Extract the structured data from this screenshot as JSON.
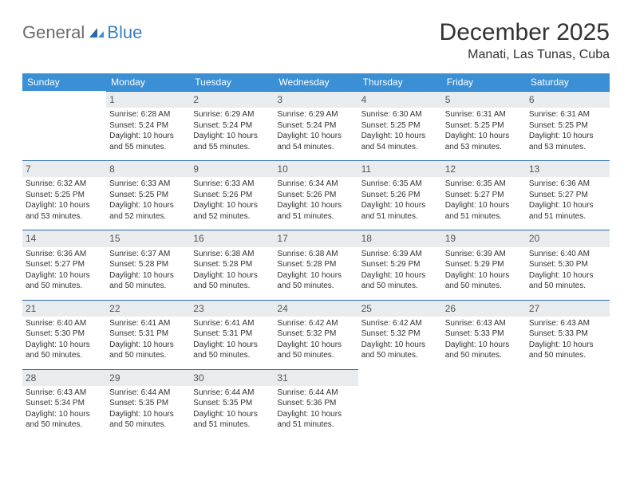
{
  "logo": {
    "general": "General",
    "blue": "Blue"
  },
  "title": "December 2025",
  "location": "Manati, Las Tunas, Cuba",
  "colors": {
    "header_bg": "#3b8fd4",
    "header_text": "#ffffff",
    "daynum_bg": "#e8ecef",
    "daynum_border": "#2a6aa8",
    "text": "#333333",
    "logo_gray": "#6b6b6b",
    "logo_blue": "#3b7fbf"
  },
  "typography": {
    "title_fontsize": 30,
    "location_fontsize": 16,
    "header_fontsize": 12,
    "cell_fontsize": 10
  },
  "weekdays": [
    "Sunday",
    "Monday",
    "Tuesday",
    "Wednesday",
    "Thursday",
    "Friday",
    "Saturday"
  ],
  "first_weekday_index": 1,
  "days": [
    {
      "n": 1,
      "sunrise": "6:28 AM",
      "sunset": "5:24 PM",
      "daylight": "10 hours and 55 minutes."
    },
    {
      "n": 2,
      "sunrise": "6:29 AM",
      "sunset": "5:24 PM",
      "daylight": "10 hours and 55 minutes."
    },
    {
      "n": 3,
      "sunrise": "6:29 AM",
      "sunset": "5:24 PM",
      "daylight": "10 hours and 54 minutes."
    },
    {
      "n": 4,
      "sunrise": "6:30 AM",
      "sunset": "5:25 PM",
      "daylight": "10 hours and 54 minutes."
    },
    {
      "n": 5,
      "sunrise": "6:31 AM",
      "sunset": "5:25 PM",
      "daylight": "10 hours and 53 minutes."
    },
    {
      "n": 6,
      "sunrise": "6:31 AM",
      "sunset": "5:25 PM",
      "daylight": "10 hours and 53 minutes."
    },
    {
      "n": 7,
      "sunrise": "6:32 AM",
      "sunset": "5:25 PM",
      "daylight": "10 hours and 53 minutes."
    },
    {
      "n": 8,
      "sunrise": "6:33 AM",
      "sunset": "5:25 PM",
      "daylight": "10 hours and 52 minutes."
    },
    {
      "n": 9,
      "sunrise": "6:33 AM",
      "sunset": "5:26 PM",
      "daylight": "10 hours and 52 minutes."
    },
    {
      "n": 10,
      "sunrise": "6:34 AM",
      "sunset": "5:26 PM",
      "daylight": "10 hours and 51 minutes."
    },
    {
      "n": 11,
      "sunrise": "6:35 AM",
      "sunset": "5:26 PM",
      "daylight": "10 hours and 51 minutes."
    },
    {
      "n": 12,
      "sunrise": "6:35 AM",
      "sunset": "5:27 PM",
      "daylight": "10 hours and 51 minutes."
    },
    {
      "n": 13,
      "sunrise": "6:36 AM",
      "sunset": "5:27 PM",
      "daylight": "10 hours and 51 minutes."
    },
    {
      "n": 14,
      "sunrise": "6:36 AM",
      "sunset": "5:27 PM",
      "daylight": "10 hours and 50 minutes."
    },
    {
      "n": 15,
      "sunrise": "6:37 AM",
      "sunset": "5:28 PM",
      "daylight": "10 hours and 50 minutes."
    },
    {
      "n": 16,
      "sunrise": "6:38 AM",
      "sunset": "5:28 PM",
      "daylight": "10 hours and 50 minutes."
    },
    {
      "n": 17,
      "sunrise": "6:38 AM",
      "sunset": "5:28 PM",
      "daylight": "10 hours and 50 minutes."
    },
    {
      "n": 18,
      "sunrise": "6:39 AM",
      "sunset": "5:29 PM",
      "daylight": "10 hours and 50 minutes."
    },
    {
      "n": 19,
      "sunrise": "6:39 AM",
      "sunset": "5:29 PM",
      "daylight": "10 hours and 50 minutes."
    },
    {
      "n": 20,
      "sunrise": "6:40 AM",
      "sunset": "5:30 PM",
      "daylight": "10 hours and 50 minutes."
    },
    {
      "n": 21,
      "sunrise": "6:40 AM",
      "sunset": "5:30 PM",
      "daylight": "10 hours and 50 minutes."
    },
    {
      "n": 22,
      "sunrise": "6:41 AM",
      "sunset": "5:31 PM",
      "daylight": "10 hours and 50 minutes."
    },
    {
      "n": 23,
      "sunrise": "6:41 AM",
      "sunset": "5:31 PM",
      "daylight": "10 hours and 50 minutes."
    },
    {
      "n": 24,
      "sunrise": "6:42 AM",
      "sunset": "5:32 PM",
      "daylight": "10 hours and 50 minutes."
    },
    {
      "n": 25,
      "sunrise": "6:42 AM",
      "sunset": "5:32 PM",
      "daylight": "10 hours and 50 minutes."
    },
    {
      "n": 26,
      "sunrise": "6:43 AM",
      "sunset": "5:33 PM",
      "daylight": "10 hours and 50 minutes."
    },
    {
      "n": 27,
      "sunrise": "6:43 AM",
      "sunset": "5:33 PM",
      "daylight": "10 hours and 50 minutes."
    },
    {
      "n": 28,
      "sunrise": "6:43 AM",
      "sunset": "5:34 PM",
      "daylight": "10 hours and 50 minutes."
    },
    {
      "n": 29,
      "sunrise": "6:44 AM",
      "sunset": "5:35 PM",
      "daylight": "10 hours and 50 minutes."
    },
    {
      "n": 30,
      "sunrise": "6:44 AM",
      "sunset": "5:35 PM",
      "daylight": "10 hours and 51 minutes."
    },
    {
      "n": 31,
      "sunrise": "6:44 AM",
      "sunset": "5:36 PM",
      "daylight": "10 hours and 51 minutes."
    }
  ],
  "labels": {
    "sunrise": "Sunrise:",
    "sunset": "Sunset:",
    "daylight": "Daylight:"
  }
}
